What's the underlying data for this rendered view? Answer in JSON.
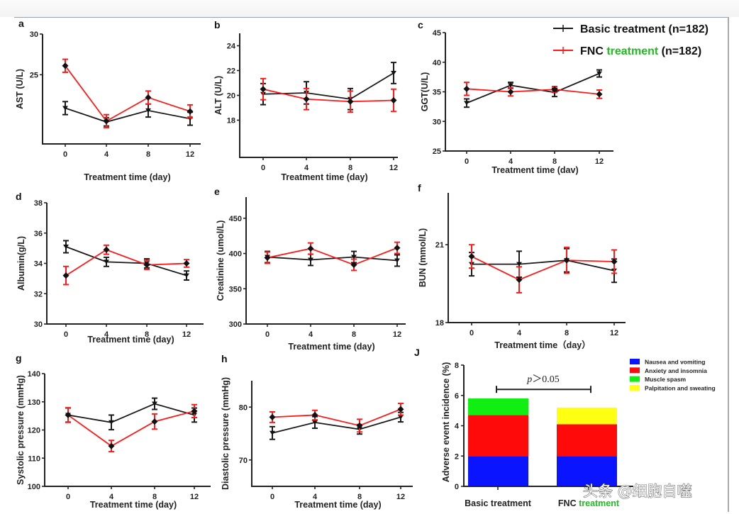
{
  "legend": {
    "entries": [
      {
        "label_main": "Basic treatment",
        "label_green": "",
        "label_suffix": " (n=182)",
        "color": "#1a1a1a"
      },
      {
        "label_main": "FNC ",
        "label_green": "treatment",
        "label_suffix": " (n=182)",
        "color": "#ff1a1a"
      }
    ],
    "green_color": "#22bb22"
  },
  "watermark": "头条 @细胞自噬",
  "chart_data": [
    {
      "type": "line",
      "panel": "a",
      "title": "",
      "xlabel": "Treatment time (day)",
      "ylabel": "AST (U/L)",
      "x": [
        0,
        4,
        8,
        12
      ],
      "xticks": [
        "0",
        "4",
        "8",
        "12"
      ],
      "ylim": [
        16.5,
        30
      ],
      "yticks": [
        25,
        30
      ],
      "yticklabels": [
        "25",
        "30"
      ],
      "series": [
        {
          "name": "Basic treatment (n=182)",
          "color": "#1a1a1a",
          "values": [
            20.9,
            19.2,
            20.6,
            19.6
          ],
          "errors": [
            0.8,
            0.5,
            0.8,
            0.8
          ]
        },
        {
          "name": "FNC treatment (n=182)",
          "color": "#ff1a1a",
          "values": [
            26.1,
            19.3,
            22.2,
            20.5
          ],
          "errors": [
            0.8,
            0.8,
            0.8,
            0.8
          ]
        }
      ]
    },
    {
      "type": "line",
      "panel": "b",
      "title": "",
      "xlabel": "Treatment time (day)",
      "ylabel": "ALT (U/L)",
      "x": [
        0,
        4,
        8,
        12
      ],
      "xticks": [
        "0",
        "4",
        "8",
        "12"
      ],
      "ylim": [
        15,
        25
      ],
      "yticks": [
        18,
        20,
        22,
        24
      ],
      "yticklabels": [
        "18",
        "20",
        "22",
        "24"
      ],
      "series": [
        {
          "name": "Basic treatment (n=182)",
          "color": "#1a1a1a",
          "values": [
            20.1,
            20.2,
            19.7,
            21.8
          ],
          "errors": [
            0.85,
            0.9,
            0.85,
            0.85
          ]
        },
        {
          "name": "FNC treatment (n=182)",
          "color": "#ff1a1a",
          "values": [
            20.5,
            19.7,
            19.5,
            19.6
          ],
          "errors": [
            0.85,
            0.85,
            0.85,
            0.9
          ]
        }
      ]
    },
    {
      "type": "line",
      "panel": "c",
      "title": "",
      "xlabel": "Treatment time (dav)",
      "ylabel": "GGT(U/L)",
      "x": [
        0,
        4,
        8,
        12
      ],
      "xticks": [
        "0",
        "4",
        "8",
        "12"
      ],
      "ylim": [
        25,
        45
      ],
      "yticks": [
        25,
        30,
        35,
        40,
        45
      ],
      "yticklabels": [
        "25",
        "30",
        "35",
        "40",
        "45"
      ],
      "series": [
        {
          "name": "Basic treatment (n=182)",
          "color": "#1a1a1a",
          "values": [
            33.1,
            36.1,
            34.9,
            38.1
          ],
          "errors": [
            0.7,
            0.5,
            0.7,
            0.6
          ]
        },
        {
          "name": "FNC treatment (n=182)",
          "color": "#ff1a1a",
          "values": [
            35.5,
            35.0,
            35.4,
            34.6
          ],
          "errors": [
            1.1,
            0.7,
            0.5,
            0.7
          ]
        }
      ]
    },
    {
      "type": "line",
      "panel": "d",
      "title": "",
      "xlabel": "Treatment time (day)",
      "ylabel": "Albumin(g/L)",
      "x": [
        0,
        4,
        8,
        12
      ],
      "xticks": [
        "0",
        "4",
        "8",
        "12"
      ],
      "ylim": [
        30,
        38
      ],
      "yticks": [
        30,
        32,
        34,
        36,
        38
      ],
      "yticklabels": [
        "30",
        "32",
        "34",
        "36",
        "38"
      ],
      "series": [
        {
          "name": "Basic treatment (n=182)",
          "color": "#1a1a1a",
          "values": [
            35.1,
            34.1,
            34.0,
            33.2
          ],
          "errors": [
            0.4,
            0.3,
            0.3,
            0.3
          ]
        },
        {
          "name": "FNC treatment (n=182)",
          "color": "#ff1a1a",
          "values": [
            33.2,
            34.9,
            33.9,
            34.0
          ],
          "errors": [
            0.6,
            0.3,
            0.3,
            0.25
          ]
        }
      ]
    },
    {
      "type": "line",
      "panel": "e",
      "title": "",
      "xlabel": "Treatment time (day)",
      "ylabel": "Creatinine (umol/L)",
      "x": [
        0,
        4,
        8,
        12
      ],
      "xticks": [
        "0",
        "4",
        "8",
        "12"
      ],
      "ylim": [
        300,
        480
      ],
      "yticks": [
        300,
        350,
        400,
        450
      ],
      "yticklabels": [
        "300",
        "350",
        "400",
        "450"
      ],
      "series": [
        {
          "name": "Basic treatment (n=182)",
          "color": "#1a1a1a",
          "values": [
            395,
            391,
            395,
            390
          ],
          "errors": [
            8,
            8,
            8,
            8
          ]
        },
        {
          "name": "FNC treatment (n=182)",
          "color": "#ff1a1a",
          "values": [
            394,
            407,
            384,
            408
          ],
          "errors": [
            8,
            8,
            8,
            8
          ]
        }
      ]
    },
    {
      "type": "line",
      "panel": "f",
      "title": "",
      "xlabel": "Treatment time（day）",
      "ylabel": "BUN (mmol/L)",
      "x": [
        0,
        4,
        8,
        12
      ],
      "xticks": [
        "0",
        "4",
        "8",
        "12"
      ],
      "ylim": [
        18,
        23
      ],
      "yticks": [
        18,
        21
      ],
      "yticklabels": [
        "18",
        "21"
      ],
      "series": [
        {
          "name": "Basic treatment (n=182)",
          "color": "#1a1a1a",
          "values": [
            20.25,
            20.25,
            20.4,
            20.0
          ],
          "errors": [
            0.45,
            0.5,
            0.45,
            0.45
          ]
        },
        {
          "name": "FNC treatment (n=182)",
          "color": "#ff1a1a",
          "values": [
            20.55,
            19.65,
            20.4,
            20.35
          ],
          "errors": [
            0.45,
            0.5,
            0.5,
            0.45
          ]
        }
      ]
    },
    {
      "type": "line",
      "panel": "g",
      "title": "",
      "xlabel": "Treatment time (day)",
      "ylabel": "Systolic pressure (mmHg)",
      "x": [
        0,
        4,
        8,
        12
      ],
      "xticks": [
        "0",
        "4",
        "8",
        "12"
      ],
      "ylim": [
        100,
        140
      ],
      "yticks": [
        100,
        110,
        120,
        130,
        140
      ],
      "yticklabels": [
        "100",
        "110",
        "120",
        "130",
        "140"
      ],
      "series": [
        {
          "name": "Basic treatment (n=182)",
          "color": "#1a1a1a",
          "values": [
            125.3,
            122.7,
            129.3,
            125.3
          ],
          "errors": [
            2.5,
            2.6,
            2.0,
            2.5
          ]
        },
        {
          "name": "FNC treatment (n=182)",
          "color": "#ff1a1a",
          "values": [
            125.3,
            114.3,
            123.0,
            126.7
          ],
          "errors": [
            2.6,
            2.0,
            2.7,
            2.3
          ]
        }
      ]
    },
    {
      "type": "line",
      "panel": "h",
      "title": "",
      "xlabel": "Treatment time (day)",
      "ylabel": "Diastolic pressure (mmHg)",
      "x": [
        0,
        4,
        8,
        12
      ],
      "xticks": [
        "0",
        "4",
        "8",
        "12"
      ],
      "ylim": [
        65,
        85
      ],
      "yticks": [
        70,
        80
      ],
      "yticklabels": [
        "70",
        "80"
      ],
      "series": [
        {
          "name": "Basic treatment (n=182)",
          "color": "#1a1a1a",
          "values": [
            75.1,
            77.1,
            75.8,
            78.1
          ],
          "errors": [
            1.2,
            1.1,
            0.9,
            0.9
          ]
        },
        {
          "name": "FNC treatment (n=182)",
          "color": "#ff1a1a",
          "values": [
            78.1,
            78.5,
            76.5,
            79.6
          ],
          "errors": [
            1.0,
            0.9,
            1.2,
            1.1
          ]
        }
      ]
    },
    {
      "type": "bar",
      "stacked": true,
      "panel": "J",
      "title": "",
      "xlabel": "",
      "ylabel": "Adverse event incidence (%)",
      "categories": [
        "Basic treatment",
        "FNC treatment"
      ],
      "category_labels": [
        {
          "main": "Basic treatment",
          "green": ""
        },
        {
          "main": "FNC ",
          "green": "treatment"
        }
      ],
      "ylim": [
        0,
        8
      ],
      "yticks": [
        0,
        2,
        4,
        6,
        8
      ],
      "yticklabels": [
        "0",
        "2",
        "4",
        "6",
        "8"
      ],
      "series": [
        {
          "name": "Nausea and vomiting",
          "color": "#0a14ff",
          "values": [
            2.0,
            2.0
          ]
        },
        {
          "name": "Anxiety and insomnia",
          "color": "#ff0a0a",
          "values": [
            2.7,
            2.1
          ]
        },
        {
          "name": "Muscle spasm",
          "color": "#11ee11",
          "values": [
            1.1,
            0.0
          ]
        },
        {
          "name": "Palpitation and sweating",
          "color": "#ffff11",
          "values": [
            0.0,
            1.1
          ]
        }
      ],
      "legend_position": "top-right",
      "annotation": {
        "p_italic": "p",
        "p_rest": "＞0.05",
        "bracket_between": [
          "Basic treatment",
          "FNC treatment"
        ],
        "bracket_y": 6.4
      }
    }
  ]
}
